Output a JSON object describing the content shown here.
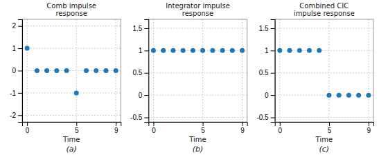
{
  "chart_data": [
    {
      "type": "scatter",
      "title": "Comb impulse\nresponse",
      "x_label": "Time",
      "annotations": [
        "(a)"
      ],
      "x": [
        0,
        1,
        2,
        3,
        4,
        5,
        6,
        7,
        8,
        9
      ],
      "values": [
        1,
        0,
        0,
        0,
        0,
        -1,
        0,
        0,
        0,
        0
      ],
      "xlim": [
        -0.5,
        9.5
      ],
      "ylim": [
        -2.3,
        2.3
      ],
      "xticks": [
        0,
        5,
        9
      ],
      "yticks": [
        -2,
        -1,
        0,
        1,
        2
      ],
      "grid": true
    },
    {
      "type": "scatter",
      "title": "Integrator impulse\nresponse",
      "x_label": "Time",
      "annotations": [
        "(b)"
      ],
      "x": [
        0,
        1,
        2,
        3,
        4,
        5,
        6,
        7,
        8,
        9
      ],
      "values": [
        1,
        1,
        1,
        1,
        1,
        1,
        1,
        1,
        1,
        1
      ],
      "xlim": [
        -0.5,
        9.5
      ],
      "ylim": [
        -0.6,
        1.7
      ],
      "xticks": [
        0,
        5,
        9
      ],
      "yticks": [
        -0.5,
        0,
        0.5,
        1,
        1.5
      ],
      "grid": true
    },
    {
      "type": "scatter",
      "title": "Combined CIC\nimpulse response",
      "x_label": "Time",
      "annotations": [
        "(c)"
      ],
      "x": [
        0,
        1,
        2,
        3,
        4,
        5,
        6,
        7,
        8,
        9
      ],
      "values": [
        1,
        1,
        1,
        1,
        1,
        0,
        0,
        0,
        0,
        0
      ],
      "xlim": [
        -0.5,
        9.5
      ],
      "ylim": [
        -0.6,
        1.7
      ],
      "xticks": [
        0,
        5,
        9
      ],
      "yticks": [
        -0.5,
        0,
        0.5,
        1,
        1.5
      ],
      "grid": true
    }
  ]
}
